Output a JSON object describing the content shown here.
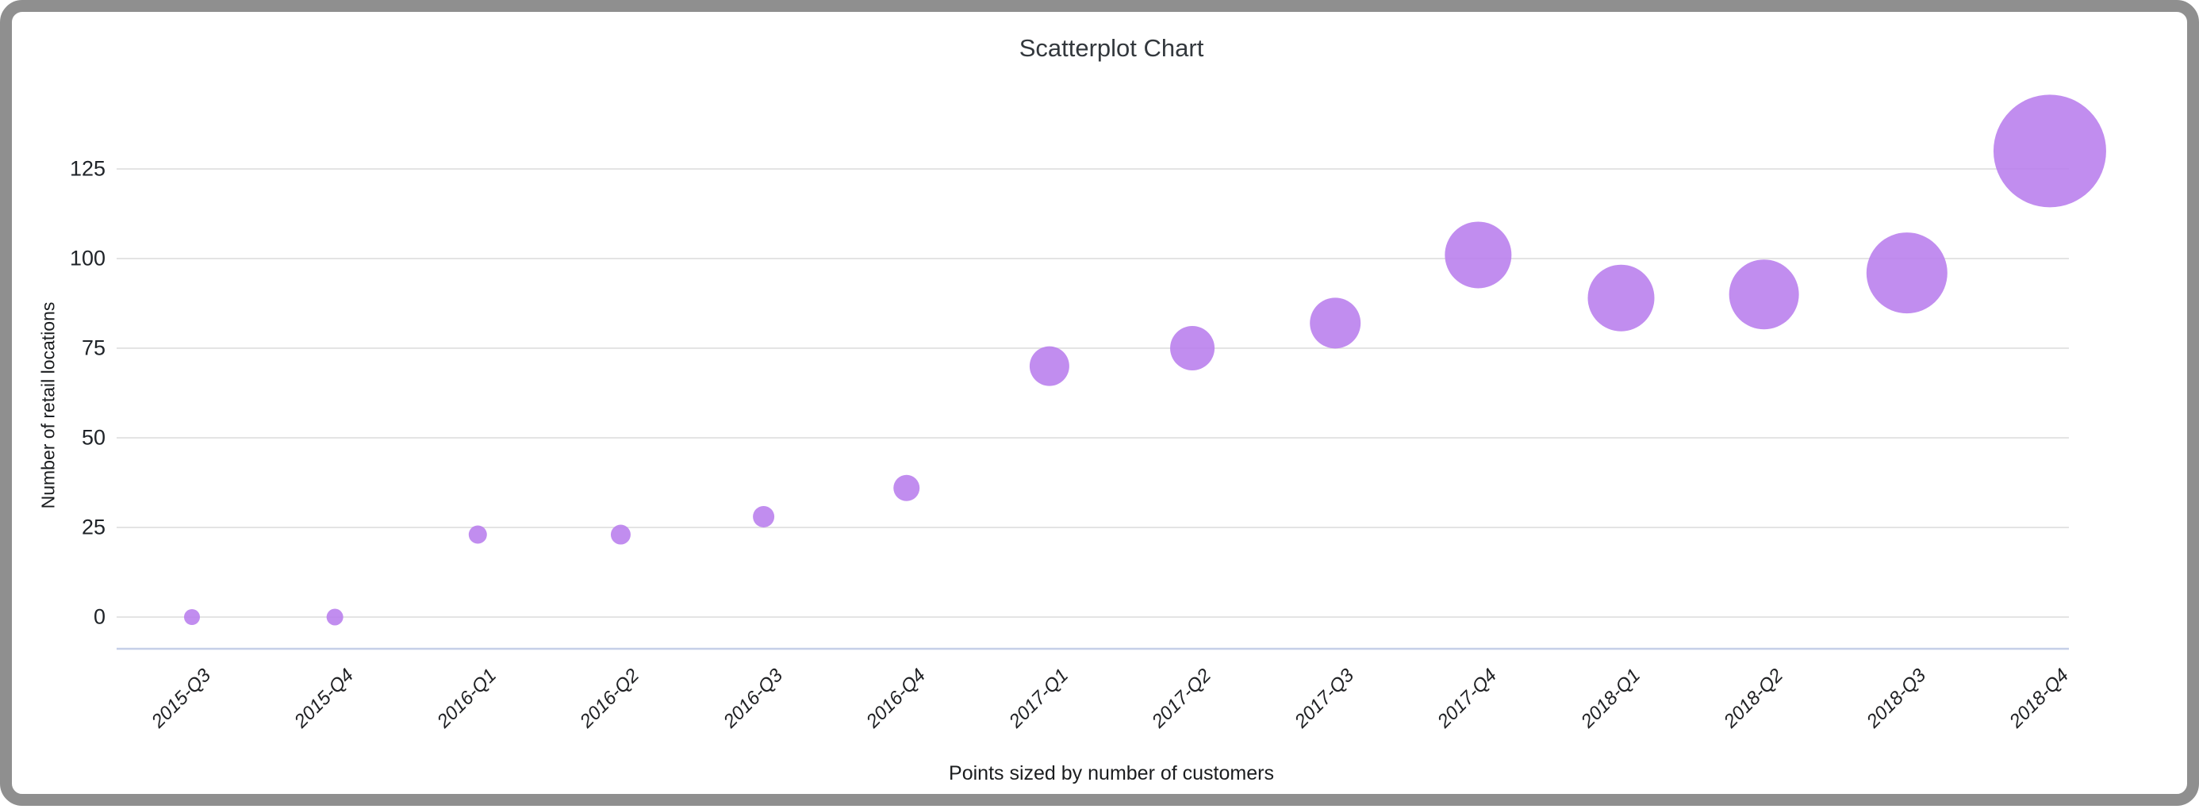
{
  "frame": {
    "border_color": "#8f8f8f",
    "background": "#ffffff"
  },
  "chart_data": {
    "type": "scatter",
    "title": "Scatterplot Chart",
    "ylabel": "Number of retail locations",
    "xlabel": "",
    "caption": "Points sized by number of customers",
    "size_encoding": "number of customers",
    "legend": "none",
    "grid": true,
    "categories": [
      "2015-Q3",
      "2015-Q4",
      "2016-Q1",
      "2016-Q2",
      "2016-Q3",
      "2016-Q4",
      "2017-Q1",
      "2017-Q2",
      "2017-Q3",
      "2017-Q4",
      "2018-Q1",
      "2018-Q2",
      "2018-Q3",
      "2018-Q4"
    ],
    "series": [
      {
        "name": "Number of retail locations",
        "values": [
          0,
          0,
          23,
          23,
          28,
          36,
          70,
          75,
          82,
          101,
          89,
          90,
          96,
          130
        ],
        "point_radius_px": [
          10,
          10.5,
          11.5,
          12.5,
          13.5,
          16.5,
          25,
          28,
          32,
          42,
          42,
          44,
          51,
          71
        ]
      }
    ],
    "yticks": [
      0,
      25,
      50,
      75,
      100,
      125
    ],
    "ylim": [
      -9,
      139
    ],
    "colors": {
      "point": "#b87ded",
      "point_opacity": 0.88,
      "gridline": "#e4e4e4",
      "baseline": "#c5cfe8",
      "tick_text": "#1f2328",
      "title_text": "#33383d"
    }
  }
}
